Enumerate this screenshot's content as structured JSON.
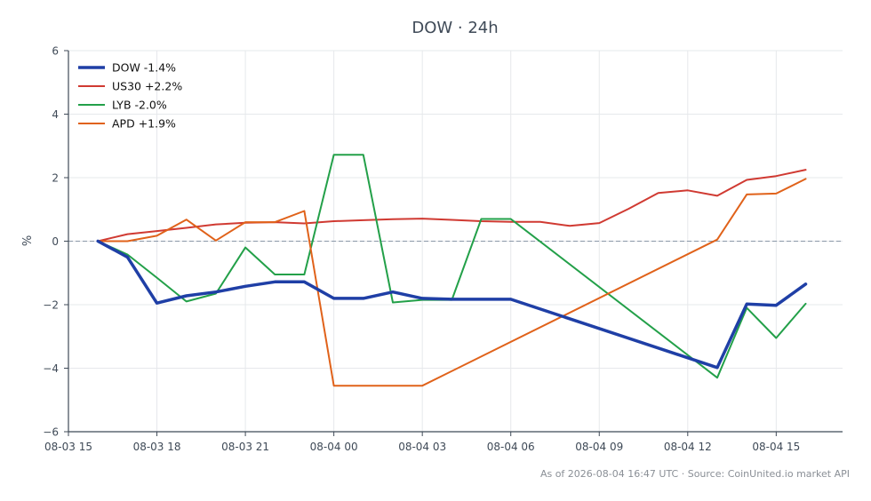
{
  "chart_data": {
    "type": "line",
    "title": "DOW · 24h",
    "xlabel": "",
    "ylabel": "%",
    "ylim": [
      -6,
      6
    ],
    "xlim": [
      "2026-08-03 15:00",
      "2026-08-04 17:15"
    ],
    "x_ticks": [
      "08-03 15",
      "08-03 18",
      "08-03 21",
      "08-04 00",
      "08-04 03",
      "08-04 06",
      "08-04 09",
      "08-04 12",
      "08-04 15"
    ],
    "x_tick_values": [
      "2026-08-03 15:00",
      "2026-08-03 18:00",
      "2026-08-03 21:00",
      "2026-08-04 00:00",
      "2026-08-04 03:00",
      "2026-08-04 06:00",
      "2026-08-04 09:00",
      "2026-08-04 12:00",
      "2026-08-04 15:00"
    ],
    "y_ticks": [
      -6,
      -4,
      -2,
      0,
      2,
      4,
      6
    ],
    "grid": true,
    "zero_line": true,
    "legend_position": "top-left",
    "series": [
      {
        "name": "DOW -1.4%",
        "color": "#1f3fa6",
        "width": 3.5,
        "x": [
          "2026-08-03 16:00",
          "2026-08-03 17:00",
          "2026-08-03 18:00",
          "2026-08-03 19:00",
          "2026-08-03 20:00",
          "2026-08-03 21:00",
          "2026-08-03 22:00",
          "2026-08-03 23:00",
          "2026-08-04 00:00",
          "2026-08-04 01:00",
          "2026-08-04 02:00",
          "2026-08-04 03:00",
          "2026-08-04 04:00",
          "2026-08-04 05:00",
          "2026-08-04 06:00",
          "2026-08-04 13:00",
          "2026-08-04 14:00",
          "2026-08-04 15:00",
          "2026-08-04 16:00"
        ],
        "y": [
          0.0,
          -0.5,
          -1.95,
          -1.72,
          -1.6,
          -1.42,
          -1.28,
          -1.28,
          -1.8,
          -1.8,
          -1.6,
          -1.8,
          -1.83,
          -1.83,
          -1.83,
          -3.98,
          -1.98,
          -2.02,
          -1.35
        ]
      },
      {
        "name": "US30 +2.2%",
        "color": "#d03a32",
        "width": 2,
        "x": [
          "2026-08-03 16:00",
          "2026-08-03 17:00",
          "2026-08-03 18:00",
          "2026-08-03 19:00",
          "2026-08-03 20:00",
          "2026-08-03 21:00",
          "2026-08-03 22:00",
          "2026-08-03 23:00",
          "2026-08-04 00:00",
          "2026-08-04 01:00",
          "2026-08-04 02:00",
          "2026-08-04 03:00",
          "2026-08-04 04:00",
          "2026-08-04 05:00",
          "2026-08-04 06:00",
          "2026-08-04 07:00",
          "2026-08-04 08:00",
          "2026-08-04 09:00",
          "2026-08-04 10:00",
          "2026-08-04 11:00",
          "2026-08-04 12:00",
          "2026-08-04 13:00",
          "2026-08-04 14:00",
          "2026-08-04 15:00",
          "2026-08-04 16:00"
        ],
        "y": [
          0.0,
          0.22,
          0.32,
          0.42,
          0.53,
          0.58,
          0.6,
          0.56,
          0.63,
          0.66,
          0.69,
          0.71,
          0.67,
          0.63,
          0.61,
          0.61,
          0.48,
          0.57,
          1.02,
          1.52,
          1.6,
          1.43,
          1.93,
          2.05,
          2.25
        ]
      },
      {
        "name": "LYB -2.0%",
        "color": "#23a049",
        "width": 2,
        "x": [
          "2026-08-03 16:00",
          "2026-08-03 17:00",
          "2026-08-03 18:00",
          "2026-08-03 19:00",
          "2026-08-03 20:00",
          "2026-08-03 21:00",
          "2026-08-03 22:00",
          "2026-08-03 23:00",
          "2026-08-04 00:00",
          "2026-08-04 01:00",
          "2026-08-04 02:00",
          "2026-08-04 03:00",
          "2026-08-04 04:00",
          "2026-08-04 05:00",
          "2026-08-04 06:00",
          "2026-08-04 13:00",
          "2026-08-04 14:00",
          "2026-08-04 15:00",
          "2026-08-04 16:00"
        ],
        "y": [
          0.0,
          -0.42,
          -1.15,
          -1.9,
          -1.65,
          -0.2,
          -1.05,
          -1.05,
          2.72,
          2.72,
          -1.93,
          -1.85,
          -1.85,
          0.7,
          0.7,
          -4.3,
          -2.1,
          -3.05,
          -1.97
        ]
      },
      {
        "name": "APD +1.9%",
        "color": "#e0621a",
        "width": 2,
        "x": [
          "2026-08-03 16:00",
          "2026-08-03 17:00",
          "2026-08-03 18:00",
          "2026-08-03 19:00",
          "2026-08-03 20:00",
          "2026-08-03 21:00",
          "2026-08-03 22:00",
          "2026-08-03 23:00",
          "2026-08-04 00:00",
          "2026-08-04 01:00",
          "2026-08-04 02:00",
          "2026-08-04 03:00",
          "2026-08-04 13:00",
          "2026-08-04 14:00",
          "2026-08-04 15:00",
          "2026-08-04 16:00"
        ],
        "y": [
          0.0,
          0.0,
          0.17,
          0.68,
          0.02,
          0.6,
          0.6,
          0.95,
          -4.55,
          -4.55,
          -4.55,
          -4.55,
          0.05,
          1.47,
          1.5,
          1.96
        ]
      }
    ],
    "footer": "As of 2026-08-04 16:47 UTC · Source: CoinUnited.io market API"
  }
}
